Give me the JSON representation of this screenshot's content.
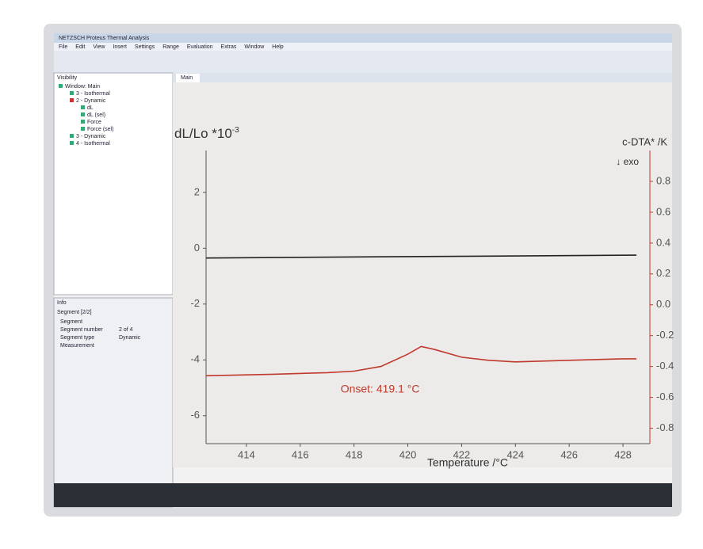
{
  "window": {
    "title": "NETZSCH Proteus Thermal Analysis",
    "menu": [
      "File",
      "Edit",
      "View",
      "Insert",
      "Settings",
      "Range",
      "Evaluation",
      "Extras",
      "Window",
      "Help"
    ],
    "tab": "Main"
  },
  "tree": {
    "title": "Visibility",
    "items": [
      "Window: Main",
      "3 - Isothermal",
      "2 - Dynamic",
      "dL",
      "dL (sel)",
      "Force",
      "Force (sel)",
      "3 - Dynamic",
      "4 - Isothermal"
    ]
  },
  "info": {
    "title": "Info",
    "header": "Segment [2/2]",
    "rows": [
      [
        "Segment",
        ""
      ],
      [
        "Segment number",
        "2 of 4"
      ],
      [
        "Segment type",
        "Dynamic"
      ],
      [
        "Measurement",
        ""
      ]
    ]
  },
  "chart_data": {
    "type": "line",
    "y_label": "dL/Lo *10",
    "y_label_superscript": "-3",
    "y2_label": "c-DTA* /K",
    "y2_note": "↓ exo",
    "x_label": "Temperature /°C",
    "annotation": "Onset: 419.1 °C",
    "xlim": [
      412.5,
      429
    ],
    "xticks": [
      414,
      416,
      418,
      420,
      422,
      424,
      426,
      428
    ],
    "ylim": [
      -7,
      3.5
    ],
    "yticks": [
      -6,
      -4,
      -2,
      0,
      2
    ],
    "y2lim": [
      -0.9,
      1.0
    ],
    "y2ticks": [
      -0.8,
      -0.6,
      -0.4,
      -0.2,
      {
        "value": 0,
        "label": "0.0"
      },
      0.2,
      0.4,
      0.6,
      0.8
    ],
    "series": [
      {
        "name": "dL",
        "color": "#222222",
        "axis": "y",
        "x": [
          412.5,
          420,
          428.5
        ],
        "values": [
          -0.35,
          -0.3,
          -0.25
        ]
      },
      {
        "name": "c-DTA*",
        "color": "#c0392b",
        "axis": "y2",
        "x": [
          412.5,
          415,
          417,
          418,
          419,
          420,
          420.5,
          421,
          422,
          423,
          424,
          426,
          428,
          428.5
        ],
        "values": [
          -0.46,
          -0.45,
          -0.44,
          -0.43,
          -0.4,
          -0.32,
          -0.27,
          -0.29,
          -0.34,
          -0.36,
          -0.37,
          -0.36,
          -0.35,
          -0.35
        ]
      }
    ]
  }
}
